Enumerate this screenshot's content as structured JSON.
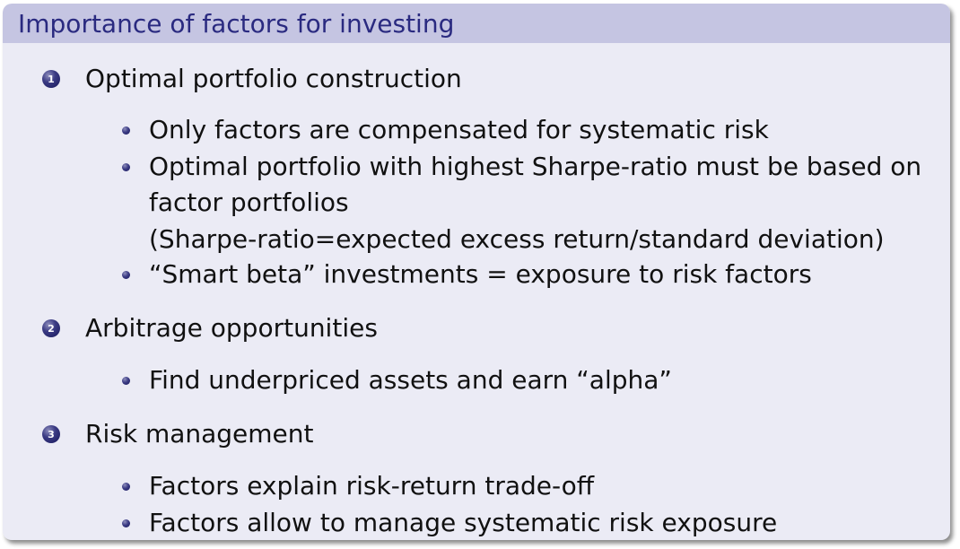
{
  "slide": {
    "title": "Importance of factors for investing",
    "items": [
      {
        "number": "1",
        "text": "Optimal portfolio construction",
        "bullets": [
          [
            "Only factors are compensated for systematic risk"
          ],
          [
            "Optimal portfolio with highest Sharpe-ratio must be based on",
            "factor portfolios",
            "(Sharpe-ratio=expected excess return/standard deviation)"
          ],
          [
            "“Smart beta” investments = exposure to risk factors"
          ]
        ]
      },
      {
        "number": "2",
        "text": "Arbitrage opportunities",
        "bullets": [
          [
            "Find underpriced assets and earn “alpha”"
          ]
        ]
      },
      {
        "number": "3",
        "text": "Risk management",
        "bullets": [
          [
            "Factors explain risk-return trade-off"
          ],
          [
            "Factors allow to manage systematic risk exposure"
          ]
        ]
      }
    ]
  }
}
